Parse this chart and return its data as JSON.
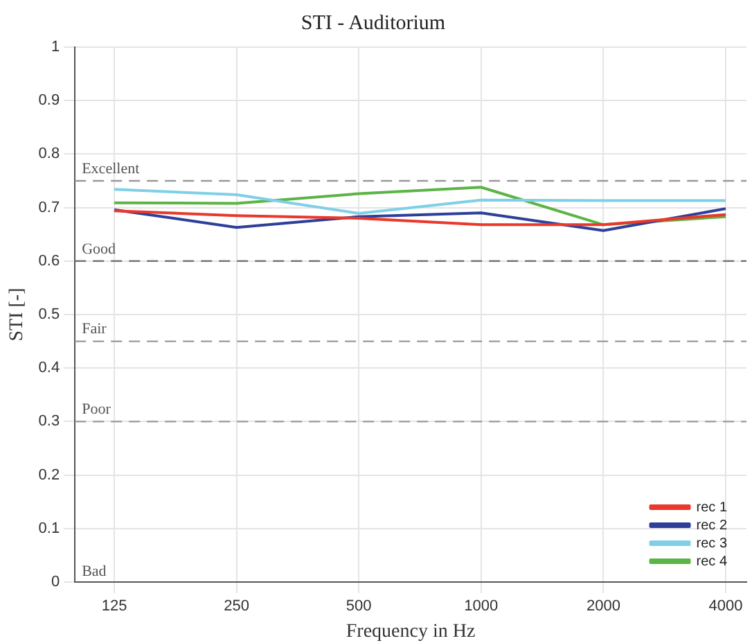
{
  "chart_data": {
    "type": "line",
    "title": "STI - Auditorium",
    "xlabel": "Frequency in Hz",
    "ylabel": "STI [-]",
    "x": [
      125,
      250,
      500,
      1000,
      2000,
      4000
    ],
    "series": [
      {
        "name": "rec 1",
        "color": "#e8392b",
        "values": [
          0.694,
          0.685,
          0.68,
          0.668,
          0.668,
          0.687
        ]
      },
      {
        "name": "rec 2",
        "color": "#2e3f9a",
        "values": [
          0.696,
          0.663,
          0.683,
          0.69,
          0.657,
          0.698
        ]
      },
      {
        "name": "rec 3",
        "color": "#7fd0e6",
        "values": [
          0.734,
          0.724,
          0.689,
          0.714,
          0.713,
          0.713
        ]
      },
      {
        "name": "rec 4",
        "color": "#5cb446",
        "values": [
          0.709,
          0.708,
          0.726,
          0.738,
          0.668,
          0.683
        ]
      }
    ],
    "log": "x",
    "xlim": [
      100,
      4500
    ],
    "xticks": [
      125,
      250,
      500,
      1000,
      2000,
      4000
    ],
    "ylim": [
      0,
      1
    ],
    "yticks": [
      0,
      0.1,
      0.2,
      0.3,
      0.4,
      0.5,
      0.6,
      0.7,
      0.8,
      0.9,
      1
    ],
    "ref_lines": [
      {
        "axis": "y",
        "value": 0.75,
        "label": "Excellent",
        "color": "#999999",
        "line_style": "dashed"
      },
      {
        "axis": "y",
        "value": 0.6,
        "label": "Good",
        "color": "#777777",
        "line_style": "dashed"
      },
      {
        "axis": "y",
        "value": 0.45,
        "label": "Fair",
        "color": "#999999",
        "line_style": "dashed"
      },
      {
        "axis": "y",
        "value": 0.3,
        "label": "Poor",
        "color": "#999999",
        "line_style": "dashed"
      }
    ],
    "annotations": [
      "Bad"
    ],
    "grid": true,
    "legend": "bottom right",
    "marker": "none",
    "line_style": "solid"
  }
}
